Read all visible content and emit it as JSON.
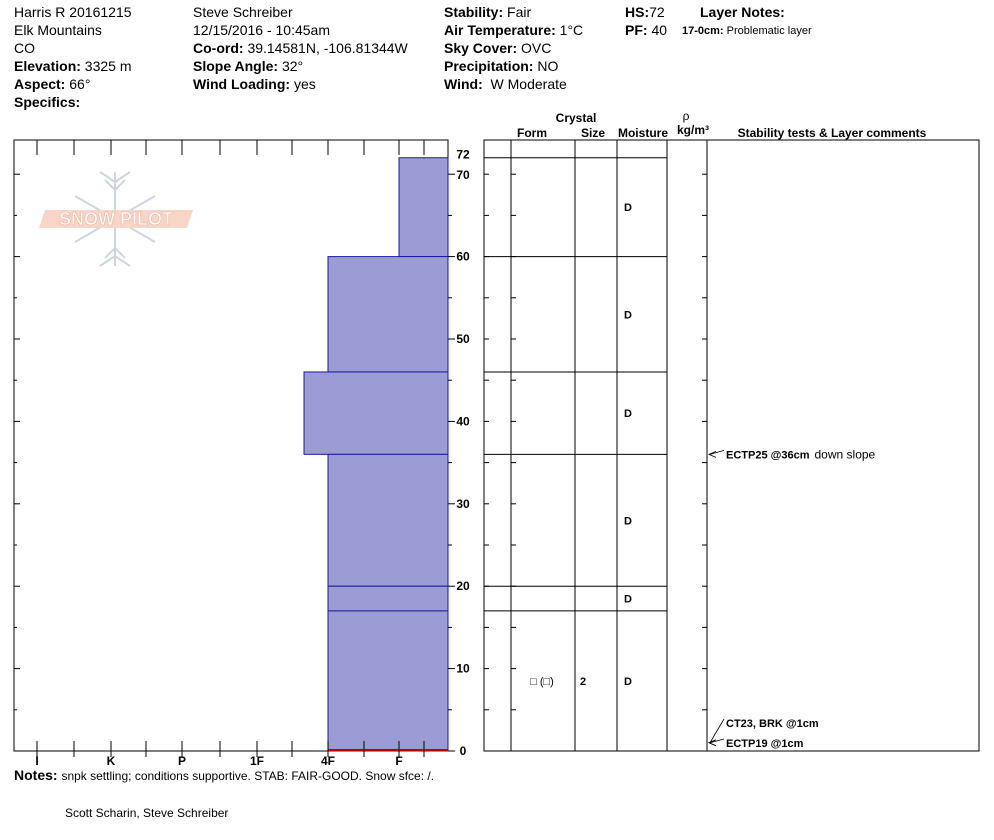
{
  "site": {
    "name": "Harris R 20161215",
    "range": "Elk Mountains",
    "state": "CO",
    "elevation_label": "Elevation:",
    "elevation": "3325 m",
    "aspect_label": "Aspect:",
    "aspect": "66°",
    "specifics_label": "Specifics:"
  },
  "observer": {
    "name": "Steve Schreiber",
    "datetime": "12/15/2016 - 10:45am",
    "coord_label": "Co-ord:",
    "coord": "39.14581N, -106.81344W",
    "slope_label": "Slope Angle:",
    "slope": "32°",
    "wind_loading_label": "Wind Loading:",
    "wind_loading": "yes"
  },
  "conditions": {
    "stability_label": "Stability:",
    "stability": "Fair",
    "air_temp_label": "Air Temperature:",
    "air_temp": "1°C",
    "sky_label": "Sky Cover:",
    "sky": "OVC",
    "precip_label": "Precipitation:",
    "precip": "NO",
    "wind_label": "Wind:",
    "wind": "W Moderate"
  },
  "summary": {
    "hs_label": "HS:",
    "hs": "72",
    "pf_label": "PF:",
    "pf": "40",
    "layer_notes_label": "Layer Notes:",
    "layer_note_depth": "17-0cm:",
    "layer_note_text": "Problematic layer"
  },
  "logo": {
    "text": "SNOW PILOT"
  },
  "table_headers": {
    "crystal": "Crystal",
    "form": "Form",
    "size": "Size",
    "moisture": "Moisture",
    "rho": "ρ",
    "density_unit": "kg/m³",
    "stability_comments": "Stability tests & Layer comments"
  },
  "chart_data": {
    "type": "bar",
    "orientation": "horizontal",
    "description_axis": "hardness",
    "hardness_categories": [
      "I",
      "K",
      "P",
      "1F",
      "4F",
      "F"
    ],
    "depth_ticks": [
      0,
      10,
      20,
      30,
      40,
      50,
      60,
      70,
      72
    ],
    "ylim": [
      0,
      72
    ],
    "layers": [
      {
        "top": 72,
        "bottom": 60,
        "hardness": "F"
      },
      {
        "top": 60,
        "bottom": 46,
        "hardness": "4F"
      },
      {
        "top": 46,
        "bottom": 36,
        "hardness": "4F+"
      },
      {
        "top": 36,
        "bottom": 20,
        "hardness": "4F"
      },
      {
        "top": 20,
        "bottom": 17,
        "hardness": "4F"
      },
      {
        "top": 17,
        "bottom": 0,
        "hardness": "4F"
      }
    ],
    "layer_rows": [
      {
        "top": 72,
        "bottom": 60,
        "moisture": "D",
        "form": "",
        "size": ""
      },
      {
        "top": 60,
        "bottom": 46,
        "moisture": "D",
        "form": "",
        "size": ""
      },
      {
        "top": 46,
        "bottom": 36,
        "moisture": "D",
        "form": "",
        "size": ""
      },
      {
        "top": 36,
        "bottom": 20,
        "moisture": "D",
        "form": "",
        "size": ""
      },
      {
        "top": 20,
        "bottom": 17,
        "moisture": "D",
        "form": "",
        "size": ""
      },
      {
        "top": 17,
        "bottom": 0,
        "moisture": "D",
        "form": "□ (□)",
        "size": "2"
      }
    ],
    "stability_tests": [
      {
        "depth": 36,
        "label": "ECTP25 @36cm",
        "comment": "down slope"
      },
      {
        "depth": 1,
        "label": "CT23, BRK @1cm",
        "comment": ""
      },
      {
        "depth": 1,
        "label": "ECTP19 @1cm",
        "comment": ""
      }
    ],
    "colors": {
      "layer_fill": "#9b9bd6",
      "layer_edge": "#1a1aa0",
      "ground_line": "#c00000"
    }
  },
  "notes": {
    "label": "Notes:",
    "text": "snpk settling; conditions supportive. STAB: FAIR-GOOD. Snow sfce: /.",
    "observers": "Scott Scharin, Steve Schreiber"
  }
}
